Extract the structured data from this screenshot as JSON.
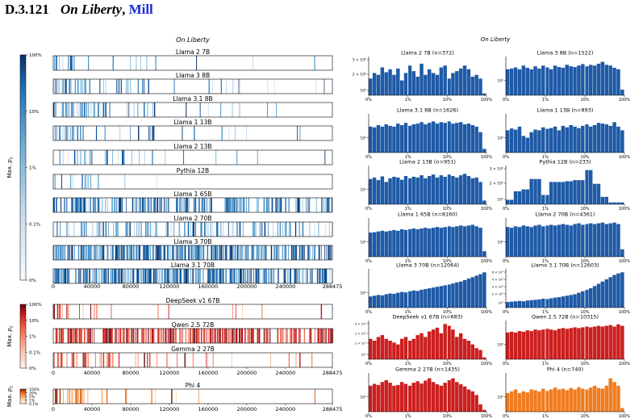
{
  "heading": {
    "number": "D.3.121",
    "book": "On Liberty",
    "separator": ",",
    "author": "Mill"
  },
  "chart_data": [
    {
      "type": "heatmap",
      "title": "On Liberty",
      "xlabel": "",
      "colorbar_label": "Max. p_z",
      "x_ticks": [
        0,
        40000,
        80000,
        120000,
        160000,
        200000,
        240000,
        288475
      ],
      "xlim": [
        0,
        288475
      ],
      "panel_groups": [
        {
          "colormap": "Blues",
          "colorbar_ticks": [
            "100%",
            "10%",
            "1%",
            "0.1%",
            "0%"
          ],
          "panels": [
            {
              "name": "Llama 2 7B",
              "density": 0.04
            },
            {
              "name": "Llama 3 8B",
              "density": 0.16
            },
            {
              "name": "Llama 3.1 8B",
              "density": 0.17
            },
            {
              "name": "Llama 1 13B",
              "density": 0.09
            },
            {
              "name": "Llama 2 13B",
              "density": 0.09
            },
            {
              "name": "Pythia 12B",
              "density": 0.02
            },
            {
              "name": "Llama 1 65B",
              "density": 0.55
            },
            {
              "name": "Llama 2 70B",
              "density": 0.35
            },
            {
              "name": "Llama 3 70B",
              "density": 0.85
            },
            {
              "name": "Llama 3.1 70B",
              "density": 0.87
            }
          ]
        },
        {
          "colormap": "Reds",
          "colorbar_ticks": [
            "100%",
            "10%",
            "1%",
            "0.1%",
            "0%"
          ],
          "panels": [
            {
              "name": "DeepSeek v1 67B",
              "density": 0.06
            },
            {
              "name": "Qwen 2.5 72B",
              "density": 0.75
            },
            {
              "name": "Gemma 2 27B",
              "density": 0.14
            }
          ]
        },
        {
          "colormap": "Oranges",
          "colorbar_ticks": [
            "100%",
            "20%",
            "5%",
            "1%",
            "0.1%"
          ],
          "panels": [
            {
              "name": "Phi 4",
              "density": 0.07
            }
          ]
        }
      ]
    },
    {
      "type": "bar",
      "title": "On Liberty",
      "x_ticks": [
        "0%",
        "1%",
        "10%",
        "100%"
      ],
      "yscale": "log",
      "panels": [
        {
          "name": "Llama 2 7B (n=372)",
          "color": "#1f5aa6",
          "y_ticks": [
            "3 × 10²",
            "2 × 10²",
            "10²"
          ],
          "heights": [
            0.45,
            0.6,
            0.55,
            0.75,
            0.62,
            0.7,
            0.55,
            0.72,
            0.4,
            0.6,
            0.8,
            0.65,
            0.5,
            0.85,
            0.55,
            0.7,
            0.6,
            0.55,
            0.75,
            0.8,
            0.45,
            0.6,
            0.65,
            0.72,
            0.8,
            0.7,
            0.5,
            0.55,
            0.45,
            0.05
          ]
        },
        {
          "name": "Llama 3 8B (n=1522)",
          "color": "#1f5aa6",
          "y_ticks": [
            "10¹"
          ],
          "heights": [
            0.7,
            0.72,
            0.75,
            0.7,
            0.8,
            0.74,
            0.7,
            0.78,
            0.72,
            0.8,
            0.75,
            0.7,
            0.8,
            0.76,
            0.74,
            0.82,
            0.78,
            0.76,
            0.8,
            0.84,
            0.78,
            0.82,
            0.8,
            0.85,
            0.9,
            0.82,
            0.8,
            0.74,
            0.7,
            0.15
          ]
        },
        {
          "name": "Llama 3.1 8B (n=1626)",
          "color": "#1f5aa6",
          "y_ticks": [
            "10²"
          ],
          "heights": [
            0.7,
            0.68,
            0.74,
            0.7,
            0.76,
            0.72,
            0.7,
            0.78,
            0.74,
            0.8,
            0.72,
            0.76,
            0.78,
            0.82,
            0.76,
            0.8,
            0.84,
            0.78,
            0.82,
            0.8,
            0.84,
            0.78,
            0.8,
            0.82,
            0.76,
            0.78,
            0.74,
            0.7,
            0.55,
            0.1
          ]
        },
        {
          "name": "Llama 1 13B (n=893)",
          "color": "#1f5aa6",
          "y_ticks": [
            "10²"
          ],
          "heights": [
            0.6,
            0.65,
            0.62,
            0.7,
            0.45,
            0.4,
            0.55,
            0.62,
            0.6,
            0.68,
            0.64,
            0.66,
            0.7,
            0.6,
            0.72,
            0.68,
            0.74,
            0.7,
            0.66,
            0.72,
            0.76,
            0.7,
            0.74,
            0.8,
            0.78,
            0.76,
            0.72,
            0.82,
            0.7,
            0.6
          ]
        },
        {
          "name": "Llama 2 13B (n=951)",
          "color": "#1f5aa6",
          "y_ticks": [
            "10¹"
          ],
          "heights": [
            0.68,
            0.72,
            0.65,
            0.75,
            0.6,
            0.7,
            0.74,
            0.72,
            0.66,
            0.76,
            0.7,
            0.74,
            0.72,
            0.78,
            0.7,
            0.76,
            0.8,
            0.72,
            0.78,
            0.74,
            0.8,
            0.76,
            0.72,
            0.78,
            0.82,
            0.76,
            0.7,
            0.72,
            0.6,
            0.1
          ]
        },
        {
          "name": "Pythia 12B (n=233)",
          "color": "#1f5aa6",
          "y_ticks": [
            "3 × 10¹",
            "2 × 10¹",
            "10¹"
          ],
          "heights": [
            0.12,
            0.12,
            0.35,
            0.35,
            0.4,
            0.4,
            0.68,
            0.68,
            0.68,
            0.25,
            0.25,
            0.6,
            0.6,
            0.6,
            0.6,
            0.62,
            0.62,
            0.65,
            0.65,
            0.65,
            0.92,
            0.92,
            0.55,
            0.55,
            0.2,
            0.2,
            0.05,
            0.05,
            0.05,
            0.05
          ]
        },
        {
          "name": "Llama 1 65B (n=8160)",
          "color": "#1f5aa6",
          "y_ticks": [
            "10²"
          ],
          "heights": [
            0.65,
            0.66,
            0.68,
            0.7,
            0.68,
            0.7,
            0.72,
            0.7,
            0.74,
            0.72,
            0.74,
            0.76,
            0.74,
            0.76,
            0.78,
            0.76,
            0.78,
            0.8,
            0.78,
            0.8,
            0.82,
            0.8,
            0.82,
            0.84,
            0.82,
            0.84,
            0.86,
            0.82,
            0.78,
            0.15
          ]
        },
        {
          "name": "Llama 2 70B (n=4361)",
          "color": "#1f5aa6",
          "y_ticks": [
            "10²"
          ],
          "heights": [
            0.8,
            0.78,
            0.82,
            0.8,
            0.84,
            0.82,
            0.8,
            0.84,
            0.86,
            0.82,
            0.84,
            0.86,
            0.84,
            0.86,
            0.88,
            0.86,
            0.84,
            0.88,
            0.9,
            0.86,
            0.88,
            0.9,
            0.88,
            0.9,
            0.92,
            0.88,
            0.9,
            0.92,
            0.88,
            0.2
          ]
        },
        {
          "name": "Llama 3 70B (n=12064)",
          "color": "#1f5aa6",
          "y_ticks": [
            "10²"
          ],
          "heights": [
            0.3,
            0.32,
            0.34,
            0.33,
            0.36,
            0.38,
            0.37,
            0.4,
            0.42,
            0.41,
            0.44,
            0.46,
            0.45,
            0.48,
            0.5,
            0.52,
            0.54,
            0.56,
            0.58,
            0.6,
            0.62,
            0.65,
            0.68,
            0.7,
            0.74,
            0.78,
            0.82,
            0.86,
            0.9,
            0.95
          ]
        },
        {
          "name": "Llama 3.1 70B (n=12603)",
          "color": "#1f5aa6",
          "y_ticks": [
            "6 × 10²",
            "4 × 10²",
            "3 × 10²",
            "2 × 10²",
            "10²"
          ],
          "heights": [
            0.15,
            0.16,
            0.17,
            0.18,
            0.17,
            0.19,
            0.2,
            0.21,
            0.22,
            0.24,
            0.23,
            0.25,
            0.27,
            0.28,
            0.3,
            0.32,
            0.34,
            0.36,
            0.4,
            0.44,
            0.48,
            0.52,
            0.58,
            0.64,
            0.7,
            0.76,
            0.82,
            0.88,
            0.92,
            0.95
          ]
        },
        {
          "name": "DeepSeek v1 67B (n=683)",
          "color": "#cc1f1f",
          "y_ticks": [
            "4 × 10¹",
            "3 × 10¹",
            "2 × 10¹",
            "10¹"
          ],
          "heights": [
            0.55,
            0.5,
            0.6,
            0.65,
            0.55,
            0.5,
            0.45,
            0.4,
            0.55,
            0.6,
            0.5,
            0.55,
            0.65,
            0.7,
            0.6,
            0.75,
            0.8,
            0.85,
            0.7,
            0.95,
            0.9,
            0.8,
            0.6,
            0.7,
            0.55,
            0.5,
            0.4,
            0.3,
            0.25,
            0.05
          ]
        },
        {
          "name": "Qwen 2.5 72B (n=10315)",
          "color": "#cc1f1f",
          "y_ticks": [
            "10²"
          ],
          "heights": [
            0.72,
            0.74,
            0.72,
            0.76,
            0.74,
            0.78,
            0.76,
            0.8,
            0.78,
            0.8,
            0.82,
            0.8,
            0.78,
            0.82,
            0.84,
            0.82,
            0.84,
            0.86,
            0.84,
            0.86,
            0.88,
            0.86,
            0.88,
            0.9,
            0.88,
            0.9,
            0.92,
            0.88,
            0.94,
            0.9
          ]
        },
        {
          "name": "Gemma 2 27B (n=1435)",
          "color": "#cc1f1f",
          "y_ticks": [
            "10¹"
          ],
          "heights": [
            0.7,
            0.75,
            0.72,
            0.8,
            0.85,
            0.78,
            0.7,
            0.72,
            0.8,
            0.75,
            0.7,
            0.78,
            0.82,
            0.76,
            0.84,
            0.9,
            0.8,
            0.74,
            0.7,
            0.78,
            0.85,
            0.9,
            0.8,
            0.74,
            0.68,
            0.6,
            0.55,
            0.45,
            0.2,
            0.05
          ]
        },
        {
          "name": "Phi 4 (n=740)",
          "color": "#f07c1f",
          "y_ticks": [
            "10¹"
          ],
          "heights": [
            0.5,
            0.55,
            0.6,
            0.5,
            0.55,
            0.52,
            0.6,
            0.58,
            0.55,
            0.62,
            0.56,
            0.6,
            0.65,
            0.6,
            0.62,
            0.58,
            0.64,
            0.6,
            0.66,
            0.62,
            0.6,
            0.65,
            0.7,
            0.64,
            0.62,
            0.7,
            0.9,
            0.8,
            0.7,
            0.1
          ]
        }
      ]
    }
  ]
}
